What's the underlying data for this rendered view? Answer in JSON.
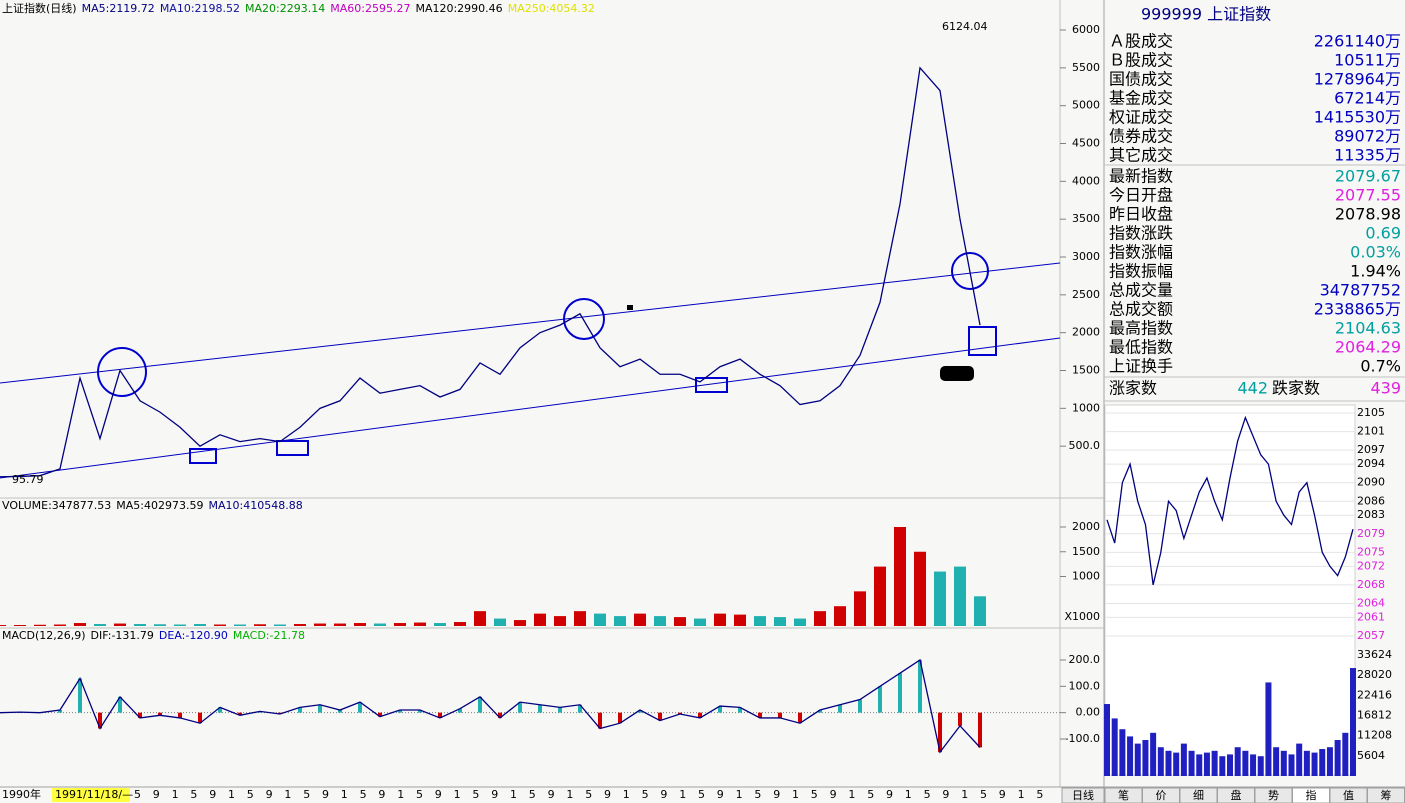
{
  "main": {
    "header": [
      {
        "text": "上证指数(日线)",
        "color": "#000000"
      },
      {
        "text": "MA5:2119.72",
        "color": "#000080"
      },
      {
        "text": "MA10:2198.52",
        "color": "#1010a0"
      },
      {
        "text": "MA20:2293.14",
        "color": "#009000"
      },
      {
        "text": "MA60:2595.27",
        "color": "#c000c0"
      },
      {
        "text": "MA120:2990.46",
        "color": "#000000"
      },
      {
        "text": "MA250:4054.32",
        "color": "#e0e000"
      }
    ],
    "ylim": [
      0,
      6000
    ],
    "yticks": [
      {
        "value": 500,
        "label": "500.0"
      },
      1000,
      1500,
      2000,
      2500,
      3000,
      3500,
      4000,
      4500,
      5000,
      5500,
      6000
    ],
    "close": [
      96,
      100,
      110,
      200,
      1400,
      600,
      1500,
      1100,
      950,
      750,
      500,
      650,
      560,
      600,
      560,
      750,
      1000,
      1100,
      1400,
      1200,
      1250,
      1300,
      1150,
      1250,
      1600,
      1450,
      1800,
      2000,
      2100,
      2250,
      1800,
      1550,
      1650,
      1450,
      1450,
      1350,
      1550,
      1650,
      1450,
      1300,
      1050,
      1100,
      1300,
      1700,
      2400,
      3700,
      5500,
      5200,
      3500,
      2100
    ],
    "high_label": "6124.04",
    "low_label": "95.79",
    "line_color": "#000080"
  },
  "volume": {
    "header": [
      {
        "text": "VOLUME:347877.53",
        "color": "#000000"
      },
      {
        "text": "MA5:402973.59",
        "color": "#000000"
      },
      {
        "text": "MA10:410548.88",
        "color": "#000080"
      }
    ],
    "ylim": [
      0,
      2000
    ],
    "yticks": [
      1000,
      1500,
      2000
    ],
    "unit": "X1000",
    "values": [
      20,
      20,
      25,
      30,
      60,
      40,
      50,
      40,
      35,
      30,
      40,
      30,
      30,
      35,
      30,
      40,
      50,
      50,
      60,
      50,
      60,
      70,
      60,
      80,
      300,
      150,
      120,
      250,
      200,
      300,
      250,
      200,
      250,
      200,
      180,
      150,
      250,
      230,
      200,
      180,
      150,
      300,
      400,
      700,
      1200,
      2000,
      1500,
      1100,
      1200,
      600
    ],
    "up_color": "#d00000",
    "down_color": "#20b0b0"
  },
  "macd": {
    "header": [
      {
        "text": "MACD(12,26,9)",
        "color": "#000000"
      },
      {
        "text": "DIF:-131.79",
        "color": "#000000"
      },
      {
        "text": "DEA:-120.90",
        "color": "#0000c0"
      },
      {
        "text": "MACD:-21.78",
        "color": "#00b000"
      }
    ],
    "ylim": [
      -100,
      200
    ],
    "yticks": [
      {
        "value": 200,
        "label": "200.0"
      },
      {
        "value": 100,
        "label": "100.0"
      },
      {
        "value": 0,
        "label": "0.00"
      },
      {
        "value": -100,
        "label": "-100.0"
      }
    ],
    "values": [
      0,
      2,
      0,
      10,
      130,
      -60,
      60,
      -20,
      -10,
      -20,
      -40,
      20,
      -10,
      5,
      -5,
      20,
      30,
      10,
      40,
      -15,
      10,
      10,
      -20,
      15,
      60,
      -20,
      40,
      30,
      20,
      30,
      -60,
      -40,
      10,
      -30,
      -5,
      -20,
      25,
      20,
      -20,
      -20,
      -40,
      10,
      30,
      50,
      100,
      150,
      200,
      -150,
      -50,
      -131.79
    ],
    "line_color": "#000080",
    "up_color": "#20b0b0",
    "down_color": "#d00000"
  },
  "dates": {
    "start": "1990年",
    "cursor": "1991/11/18/—",
    "months": [
      "5",
      "9",
      "1",
      "5",
      "9",
      "1",
      "5",
      "9",
      "1",
      "5",
      "9",
      "1",
      "5",
      "9",
      "1",
      "5",
      "9",
      "1",
      "5",
      "9",
      "1",
      "5",
      "9",
      "1",
      "5",
      "9",
      "1",
      "5",
      "9",
      "1",
      "5",
      "9",
      "1",
      "5",
      "9",
      "1",
      "5",
      "9",
      "1",
      "5",
      "9",
      "1",
      "5",
      "9",
      "1",
      "5",
      "9",
      "1",
      "5"
    ]
  },
  "panel": {
    "title": "999999 上证指数",
    "group1": [
      {
        "label": "Ａ股成交",
        "value": "2261140万",
        "color": "#0000c0"
      },
      {
        "label": "Ｂ股成交",
        "value": "10511万",
        "color": "#0000c0"
      },
      {
        "label": "国债成交",
        "value": "1278964万",
        "color": "#0000c0"
      },
      {
        "label": "基金成交",
        "value": "67214万",
        "color": "#0000c0"
      },
      {
        "label": "权证成交",
        "value": "1415530万",
        "color": "#0000c0"
      },
      {
        "label": "债券成交",
        "value": "89072万",
        "color": "#0000c0"
      },
      {
        "label": "其它成交",
        "value": "11335万",
        "color": "#0000c0"
      }
    ],
    "group2": [
      {
        "label": "最新指数",
        "value": "2079.67",
        "color": "#00a0a0"
      },
      {
        "label": "今日开盘",
        "value": "2077.55",
        "color": "#e020e0"
      },
      {
        "label": "昨日收盘",
        "value": "2078.98",
        "color": "#000000"
      },
      {
        "label": "指数涨跌",
        "value": "0.69",
        "color": "#00a0a0"
      },
      {
        "label": "指数涨幅",
        "value": "0.03%",
        "color": "#00a0a0"
      },
      {
        "label": "指数振幅",
        "value": "1.94%",
        "color": "#000000"
      },
      {
        "label": "总成交量",
        "value": "34787752",
        "color": "#0000c0"
      },
      {
        "label": "总成交额",
        "value": "2338865万",
        "color": "#0000c0"
      },
      {
        "label": "最高指数",
        "value": "2104.63",
        "color": "#00a0a0"
      },
      {
        "label": "最低指数",
        "value": "2064.29",
        "color": "#e020e0"
      },
      {
        "label": "上证换手",
        "value": "0.7%",
        "color": "#000000"
      }
    ],
    "breadth": [
      {
        "label": "涨家数",
        "value": "442",
        "color": "#00a0a0"
      },
      {
        "label": "跌家数",
        "value": "439",
        "color": "#e020e0"
      }
    ]
  },
  "intraday": {
    "ylim": [
      2057,
      2105
    ],
    "yticks": [
      2105,
      2101,
      2097,
      2094,
      2090,
      2086,
      2083,
      2079,
      2075,
      2072,
      2068,
      2064,
      2061,
      2057
    ],
    "values": [
      2082,
      2077,
      2090,
      2094,
      2086,
      2081,
      2068,
      2075,
      2086,
      2084,
      2078,
      2083,
      2088,
      2091,
      2086,
      2082,
      2091,
      2099,
      2104,
      2100,
      2096,
      2094,
      2086,
      2083,
      2081,
      2088,
      2090,
      2083,
      2075,
      2072,
      2070,
      2074,
      2080
    ],
    "vlim": [
      0,
      33624
    ],
    "vticks": [
      33624,
      28020,
      22416,
      16812,
      11208,
      5604
    ],
    "volumes": [
      20000,
      16000,
      13000,
      11000,
      9000,
      10000,
      12000,
      8000,
      7000,
      6500,
      9000,
      7000,
      6000,
      6500,
      7000,
      5500,
      6000,
      8000,
      7000,
      6000,
      5500,
      26000,
      8000,
      7000,
      6000,
      9000,
      7000,
      6500,
      7500,
      8000,
      10000,
      12000,
      30000
    ],
    "price_color": "#000080",
    "volume_color": "#2020c0"
  },
  "tabs": [
    "日线",
    "笔",
    "价",
    "细",
    "盘",
    "势",
    "指",
    "值",
    "筹"
  ]
}
